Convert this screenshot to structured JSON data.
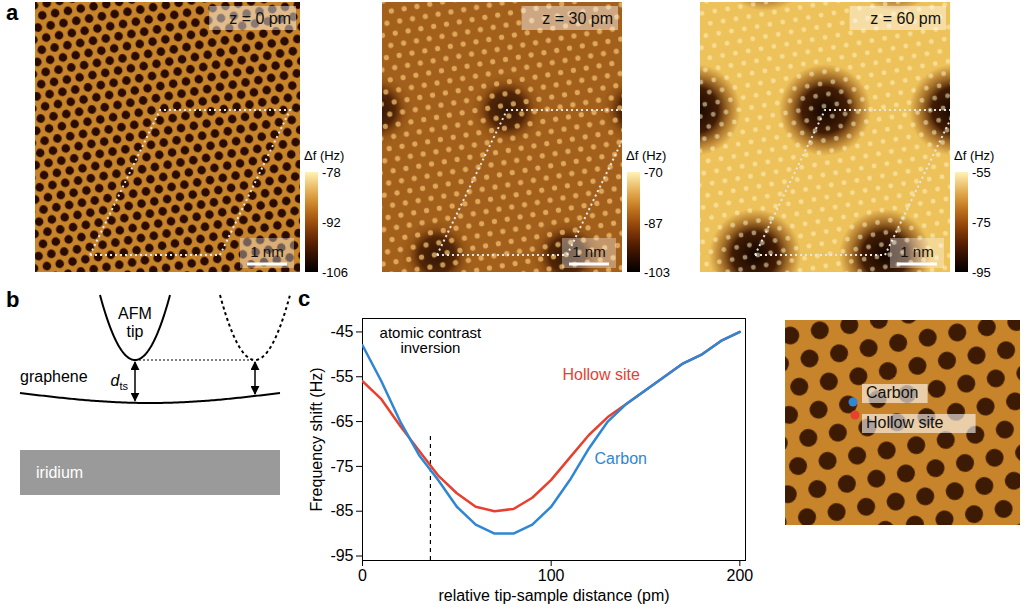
{
  "panel_a": {
    "letter": "a",
    "images": [
      {
        "label": "z = 0 pm",
        "scale_bar": "1 nm",
        "colorbar": {
          "title": "Δf (Hz)",
          "range": [
            -106,
            -78
          ],
          "ticks": [
            -78,
            -92,
            -106
          ]
        }
      },
      {
        "label": "z = 30 pm",
        "scale_bar": "1 nm",
        "colorbar": {
          "title": "Δf (Hz)",
          "range": [
            -103,
            -70
          ],
          "ticks": [
            -70,
            -87,
            -103
          ]
        }
      },
      {
        "label": "z = 60 pm",
        "scale_bar": "1 nm",
        "colorbar": {
          "title": "Δf (Hz)",
          "range": [
            -95,
            -55
          ],
          "ticks": [
            -55,
            -75,
            -95
          ]
        }
      }
    ]
  },
  "panel_b": {
    "letter": "b",
    "tip_label": "AFM tip",
    "surface_label": "graphene",
    "substrate_label": "iridium",
    "distance_label": {
      "symbol": "d",
      "subscript": "ts"
    }
  },
  "panel_c": {
    "letter": "c",
    "inset": {
      "labels": [
        {
          "text": "Carbon",
          "color": "#2e86d4"
        },
        {
          "text": "Hollow site",
          "color": "#e8402f"
        }
      ]
    }
  },
  "chart_data": {
    "type": "line",
    "x_label": "relative tip-sample distance (pm)",
    "y_label": "Frequency shift (Hz)",
    "xlim": [
      0,
      203
    ],
    "ylim": [
      -96,
      -42
    ],
    "xticks": [
      0,
      100,
      200
    ],
    "yticks": [
      -45,
      -55,
      -65,
      -75,
      -85,
      -95
    ],
    "x": [
      0,
      10,
      20,
      30,
      40,
      50,
      60,
      70,
      80,
      90,
      100,
      110,
      120,
      130,
      140,
      150,
      160,
      170,
      180,
      190,
      200
    ],
    "series": [
      {
        "name": "Hollow site",
        "color": "#e8402f",
        "values": [
          -56,
          -60,
          -66,
          -71.5,
          -77,
          -81,
          -84,
          -85,
          -84.5,
          -82,
          -78,
          -73,
          -68,
          -64,
          -61,
          -58,
          -55,
          -52,
          -50,
          -47,
          -45
        ]
      },
      {
        "name": "Carbon",
        "color": "#2e86d4",
        "values": [
          -48,
          -56,
          -65,
          -72.5,
          -78,
          -84,
          -88,
          -90,
          -90,
          -88,
          -84,
          -78,
          -71,
          -65,
          -61,
          -58,
          -55,
          -52,
          -50,
          -47,
          -45
        ]
      }
    ],
    "annotations": [
      {
        "text": "atomic contrast inversion",
        "x": 36,
        "y": -47,
        "y_range": [
          -96,
          -68
        ]
      }
    ]
  }
}
